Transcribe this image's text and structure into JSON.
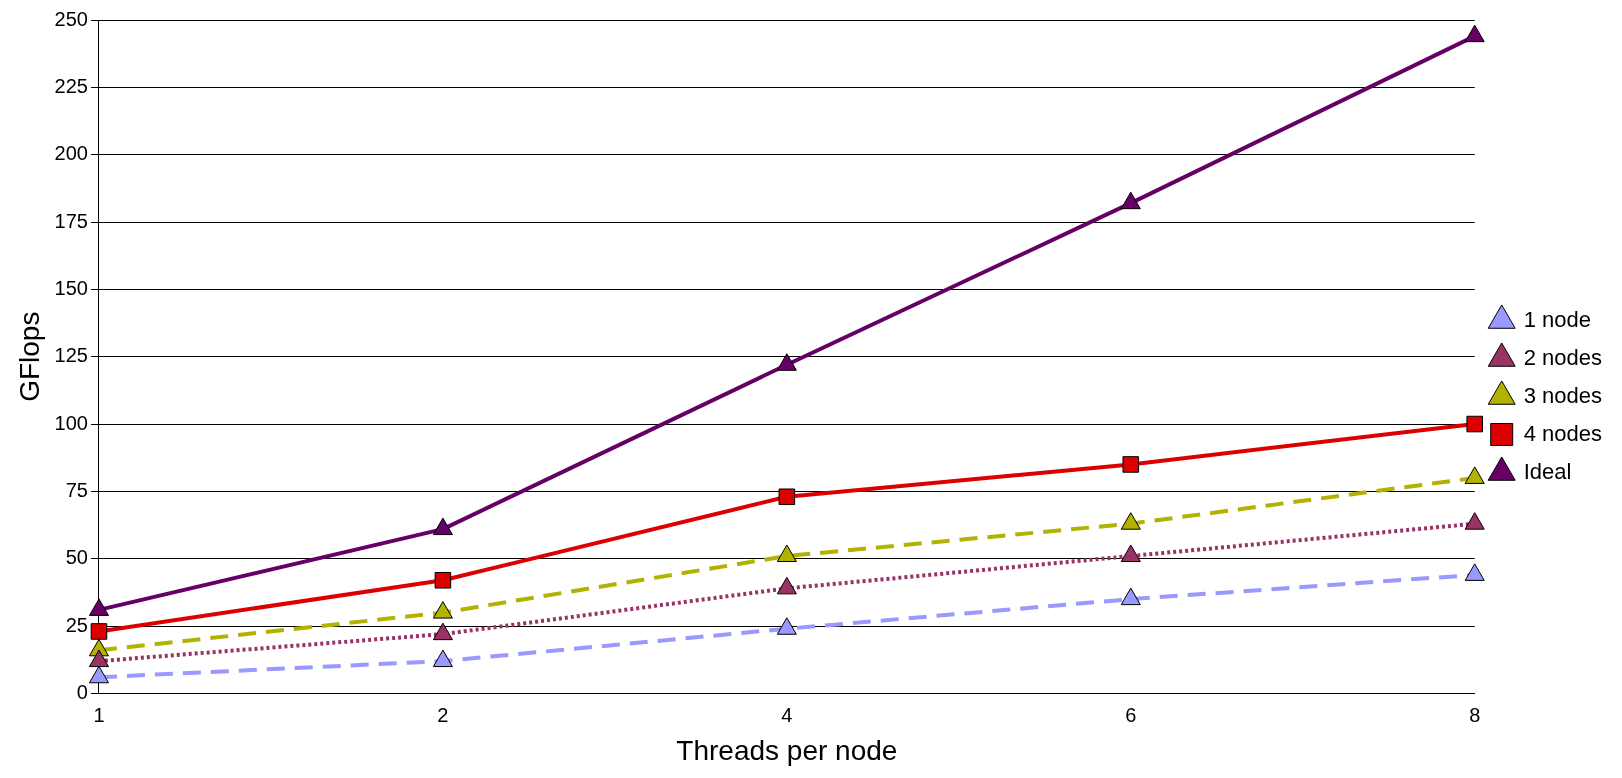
{
  "chart_data": {
    "type": "line",
    "xlabel": "Threads per node",
    "ylabel": "GFlops",
    "categories": [
      "1",
      "2",
      "4",
      "6",
      "8"
    ],
    "ylim": [
      0,
      250
    ],
    "yticks": [
      0,
      25,
      50,
      75,
      100,
      125,
      150,
      175,
      200,
      225,
      250
    ],
    "grid": "y",
    "legend": "right",
    "series": [
      {
        "name": "1 node",
        "color": "#9999ff",
        "values": [
          6,
          12,
          24,
          35,
          44
        ],
        "marker": "triangle",
        "line_style": "dashed"
      },
      {
        "name": "2 nodes",
        "color": "#993366",
        "values": [
          12,
          22,
          39,
          51,
          63
        ],
        "marker": "triangle",
        "line_style": "dotted"
      },
      {
        "name": "3 nodes",
        "color": "#b2b200",
        "values": [
          16,
          30,
          51,
          63,
          80
        ],
        "marker": "triangle",
        "line_style": "dashed"
      },
      {
        "name": "4 nodes",
        "color": "#dd0000",
        "values": [
          23,
          42,
          73,
          85,
          100
        ],
        "marker": "square",
        "line_style": "solid"
      },
      {
        "name": "Ideal",
        "color": "#660066",
        "values": [
          31,
          61,
          122,
          182,
          244
        ],
        "marker": "triangle",
        "line_style": "solid"
      }
    ]
  }
}
